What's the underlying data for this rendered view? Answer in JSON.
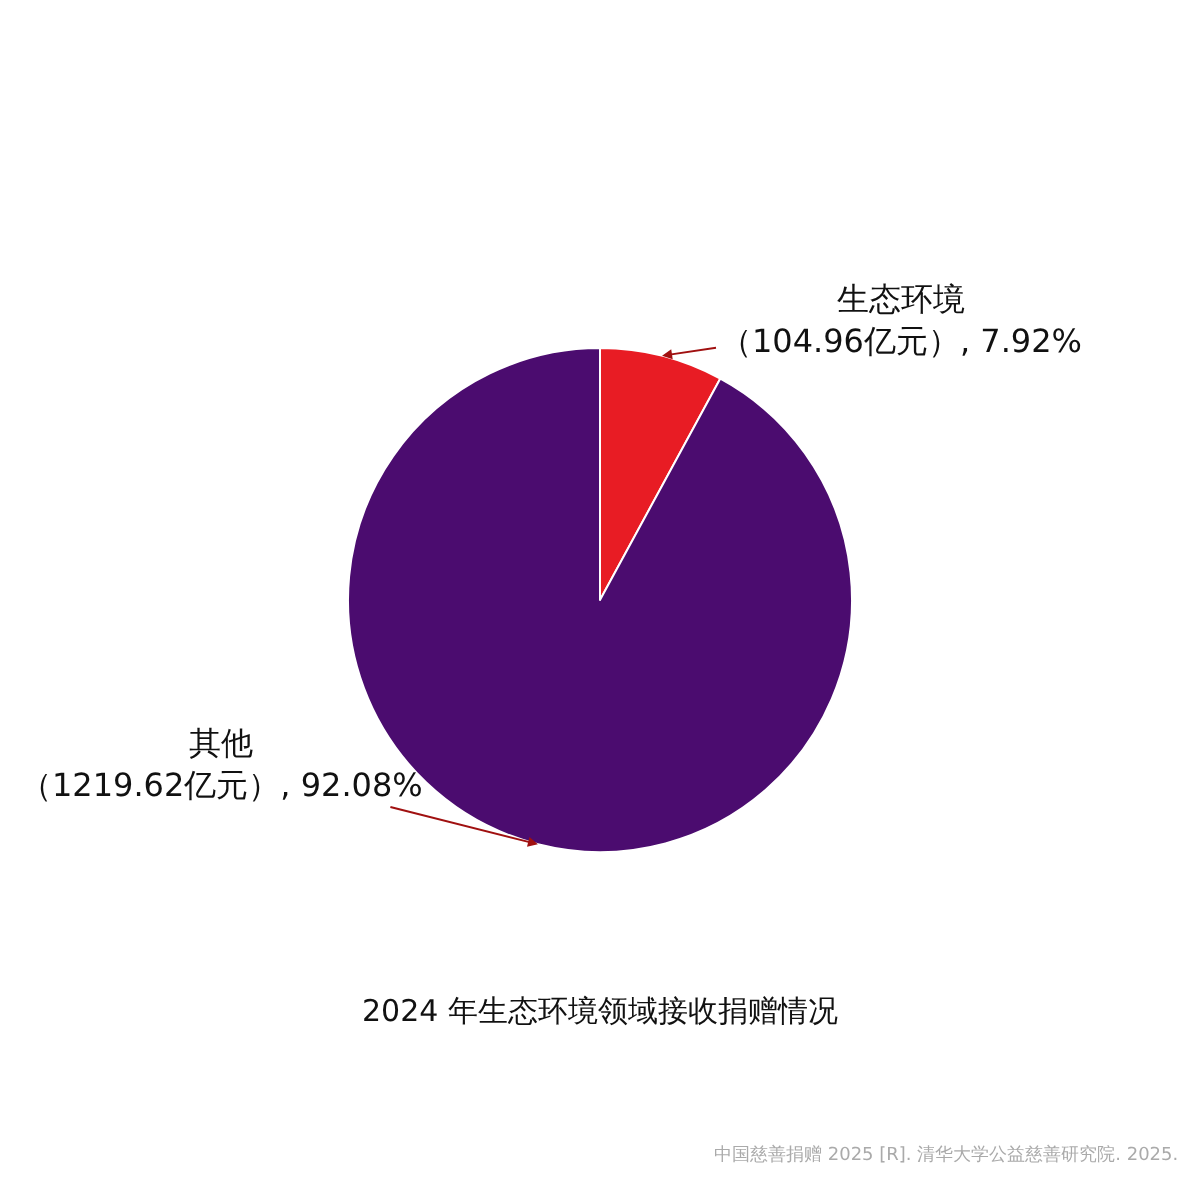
{
  "chart_data": {
    "type": "pie",
    "title": "2024 年生态环境领域接收捐赠情况",
    "categories": [
      "生态环境",
      "其他"
    ],
    "values": [
      104.96,
      1219.62
    ],
    "colors": [
      "#e81c24",
      "#4b0c6f"
    ],
    "value_labels": [
      "（104.96亿元）, 7.92%",
      "（1219.62亿元）, 92.08%"
    ],
    "annotations": [
      "中国慈善捐赠 2025 [R]. 清华大学公益慈善研究院. 2025."
    ],
    "legend": false
  }
}
